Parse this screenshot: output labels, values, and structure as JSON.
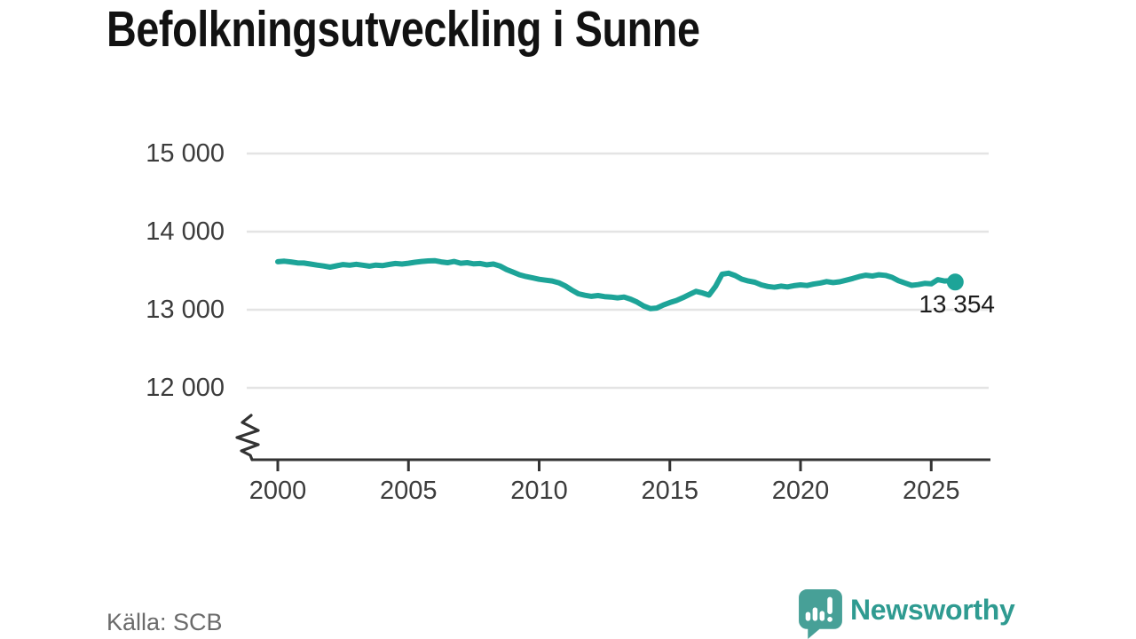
{
  "chart_data": {
    "type": "line",
    "title": "Befolkningsutveckling i Sunne",
    "source": "Källa: SCB",
    "xlabel": "",
    "ylabel": "",
    "grid": "horizontal",
    "legend": "none",
    "x_axis": {
      "tick_values": [
        2000,
        2005,
        2010,
        2015,
        2020,
        2025
      ],
      "tick_labels": [
        "2000",
        "2005",
        "2010",
        "2015",
        "2020",
        "2025"
      ],
      "range_years": [
        2000,
        2026.3
      ],
      "axis_break_at_origin": true
    },
    "y_axis": {
      "ticks": [
        {
          "value": 15000,
          "label": "15 000"
        },
        {
          "value": 14000,
          "label": "14 000"
        },
        {
          "value": 13000,
          "label": "13 000"
        },
        {
          "value": 12000,
          "label": "12 000"
        }
      ],
      "ylim": [
        12000,
        15000
      ],
      "gridlines": true
    },
    "series": [
      {
        "name": "Befolkning i Sunne",
        "color": "#1da498",
        "points": [
          [
            2000.0,
            13615
          ],
          [
            2000.25,
            13622
          ],
          [
            2000.5,
            13612
          ],
          [
            2000.75,
            13600
          ],
          [
            2001.0,
            13598
          ],
          [
            2001.25,
            13585
          ],
          [
            2001.5,
            13572
          ],
          [
            2001.75,
            13560
          ],
          [
            2002.0,
            13545
          ],
          [
            2002.25,
            13562
          ],
          [
            2002.5,
            13578
          ],
          [
            2002.75,
            13570
          ],
          [
            2003.0,
            13582
          ],
          [
            2003.25,
            13570
          ],
          [
            2003.5,
            13558
          ],
          [
            2003.75,
            13572
          ],
          [
            2004.0,
            13565
          ],
          [
            2004.25,
            13580
          ],
          [
            2004.5,
            13592
          ],
          [
            2004.75,
            13585
          ],
          [
            2005.0,
            13595
          ],
          [
            2005.25,
            13608
          ],
          [
            2005.5,
            13618
          ],
          [
            2005.75,
            13625
          ],
          [
            2006.0,
            13628
          ],
          [
            2006.25,
            13612
          ],
          [
            2006.5,
            13602
          ],
          [
            2006.75,
            13618
          ],
          [
            2007.0,
            13595
          ],
          [
            2007.25,
            13602
          ],
          [
            2007.5,
            13588
          ],
          [
            2007.75,
            13592
          ],
          [
            2008.0,
            13575
          ],
          [
            2008.25,
            13585
          ],
          [
            2008.5,
            13560
          ],
          [
            2008.75,
            13515
          ],
          [
            2009.0,
            13482
          ],
          [
            2009.25,
            13448
          ],
          [
            2009.5,
            13425
          ],
          [
            2009.75,
            13408
          ],
          [
            2010.0,
            13390
          ],
          [
            2010.25,
            13378
          ],
          [
            2010.5,
            13368
          ],
          [
            2010.75,
            13345
          ],
          [
            2011.0,
            13305
          ],
          [
            2011.25,
            13252
          ],
          [
            2011.5,
            13205
          ],
          [
            2011.75,
            13185
          ],
          [
            2012.0,
            13172
          ],
          [
            2012.25,
            13182
          ],
          [
            2012.5,
            13168
          ],
          [
            2012.75,
            13162
          ],
          [
            2013.0,
            13152
          ],
          [
            2013.25,
            13162
          ],
          [
            2013.5,
            13135
          ],
          [
            2013.75,
            13098
          ],
          [
            2014.0,
            13048
          ],
          [
            2014.25,
            13015
          ],
          [
            2014.5,
            13022
          ],
          [
            2014.75,
            13060
          ],
          [
            2015.0,
            13092
          ],
          [
            2015.25,
            13118
          ],
          [
            2015.5,
            13155
          ],
          [
            2015.75,
            13195
          ],
          [
            2016.0,
            13235
          ],
          [
            2016.25,
            13215
          ],
          [
            2016.5,
            13188
          ],
          [
            2016.75,
            13300
          ],
          [
            2017.0,
            13455
          ],
          [
            2017.25,
            13468
          ],
          [
            2017.5,
            13438
          ],
          [
            2017.75,
            13392
          ],
          [
            2018.0,
            13368
          ],
          [
            2018.25,
            13352
          ],
          [
            2018.5,
            13318
          ],
          [
            2018.75,
            13298
          ],
          [
            2019.0,
            13288
          ],
          [
            2019.25,
            13302
          ],
          [
            2019.5,
            13292
          ],
          [
            2019.75,
            13308
          ],
          [
            2020.0,
            13318
          ],
          [
            2020.25,
            13310
          ],
          [
            2020.5,
            13328
          ],
          [
            2020.75,
            13342
          ],
          [
            2021.0,
            13360
          ],
          [
            2021.25,
            13348
          ],
          [
            2021.5,
            13358
          ],
          [
            2021.75,
            13378
          ],
          [
            2022.0,
            13400
          ],
          [
            2022.25,
            13425
          ],
          [
            2022.5,
            13442
          ],
          [
            2022.75,
            13432
          ],
          [
            2023.0,
            13448
          ],
          [
            2023.25,
            13440
          ],
          [
            2023.5,
            13415
          ],
          [
            2023.75,
            13372
          ],
          [
            2024.0,
            13342
          ],
          [
            2024.25,
            13312
          ],
          [
            2024.5,
            13322
          ],
          [
            2024.75,
            13338
          ],
          [
            2025.0,
            13332
          ],
          [
            2025.25,
            13385
          ],
          [
            2025.5,
            13368
          ],
          [
            2025.75,
            13372
          ],
          [
            2025.92,
            13354
          ]
        ]
      }
    ],
    "end_point": {
      "year": 2025.92,
      "value": 13354,
      "label": "13 354"
    }
  },
  "footer": {
    "source_label": "Källa: SCB",
    "brand_name": "Newsworthy"
  },
  "icons": {
    "brand_logo": "newsworthy-speech-bubble-bar-chart-icon"
  },
  "colors": {
    "line": "#1da498",
    "grid": "#e4e4e4",
    "axis": "#333333",
    "tick_text": "#3c3c3c",
    "title_text": "#121212",
    "muted_text": "#6b6b6b",
    "brand_teal": "#2f9b91",
    "brand_icon_teal": "#47a097",
    "background": "#ffffff"
  }
}
